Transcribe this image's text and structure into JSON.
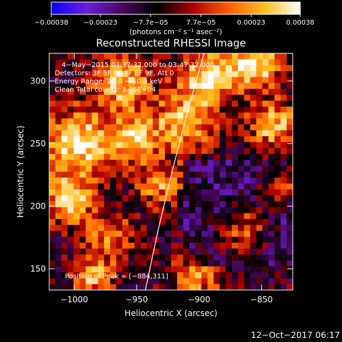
{
  "chart_data": {
    "type": "heatmap",
    "title": "Reconstructed RHESSI Image",
    "xlabel": "Heliocentric X (arcsec)",
    "ylabel": "Heliocentric Y (arcsec)",
    "xlim": [
      -1020,
      -825
    ],
    "ylim": [
      133,
      322
    ],
    "x_ticks": [
      -1000,
      -950,
      -900,
      -850
    ],
    "y_ticks": [
      150,
      200,
      250,
      300
    ],
    "x_tick_labels": [
      "−1000",
      "−950",
      "−900",
      "−850"
    ],
    "y_tick_labels": [
      "150",
      "200",
      "250",
      "300"
    ],
    "colorbar": {
      "range": [
        -0.00038,
        0.00038
      ],
      "ticks": [
        -0.00038,
        -0.00023,
        -7.7e-05,
        7.7e-05,
        0.00023,
        0.00038
      ],
      "tick_labels": [
        "−0.00038",
        "−0.00023",
        "−7.7e−05",
        "7.7e−05",
        "0.00023",
        "0.00038"
      ],
      "unit_label": "(photons cm⁻² s⁻¹ asec⁻²)",
      "colors": [
        "#0a00ff",
        "#6a1fd8",
        "#4a0860",
        "#000000",
        "#b00000",
        "#ff6000",
        "#ffc020",
        "#ffffff"
      ]
    },
    "annotations": [
      "4−May−2015 03:37:32.000 to 03:47:32.000",
      "Detectors: 3F 5F 6F 7F 8F 9F, Att 0",
      "Energy Range: 25.0 − 50.0 keV",
      "Clean    Total counts: 3.46E+04"
    ],
    "peak_label": "Position of Peak = [−884,311]",
    "peak": {
      "x": -884,
      "y": 311
    },
    "limb_curve": [
      [
        -943,
        133
      ],
      [
        -933,
        180
      ],
      [
        -921,
        230
      ],
      [
        -908,
        280
      ],
      [
        -896,
        322
      ]
    ],
    "grid": false
  },
  "footer": {
    "date": "12−Oct−2017 06:17"
  }
}
